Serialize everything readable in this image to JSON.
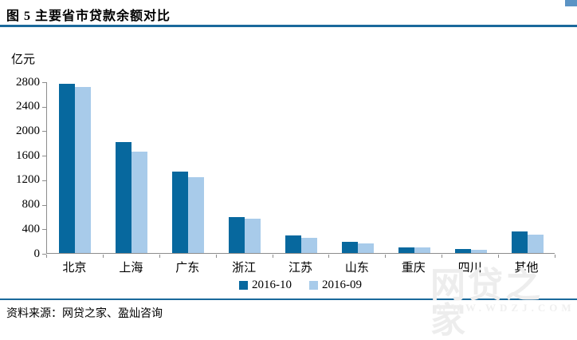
{
  "header": {
    "title": "图 5  主要省市贷款余额对比"
  },
  "chart_data": {
    "type": "bar",
    "title": "主要省市贷款余额对比",
    "ylabel": "亿元",
    "xlabel": "",
    "categories": [
      "北京",
      "上海",
      "广东",
      "浙江",
      "江苏",
      "山东",
      "重庆",
      "四川",
      "其他"
    ],
    "series": [
      {
        "name": "2016-10",
        "color": "#07689e",
        "values": [
          2760,
          1810,
          1330,
          590,
          290,
          185,
          95,
          65,
          350
        ]
      },
      {
        "name": "2016-09",
        "color": "#a8cbea",
        "values": [
          2710,
          1660,
          1240,
          560,
          250,
          160,
          85,
          57,
          300
        ]
      }
    ],
    "ylim": [
      0,
      2800
    ],
    "ytick_step": 400,
    "grid": false,
    "legend_position": "bottom-center"
  },
  "footer": {
    "source": "资料来源：网贷之家、盈灿咨询"
  },
  "watermark": {
    "brand": "网贷之家",
    "url": "WWW.WDZJ.COM"
  },
  "colors": {
    "rule_blue": "#1a699b",
    "axis_gray": "#8c8c8c",
    "series_dark": "#07689e",
    "series_light": "#a8cbea"
  }
}
